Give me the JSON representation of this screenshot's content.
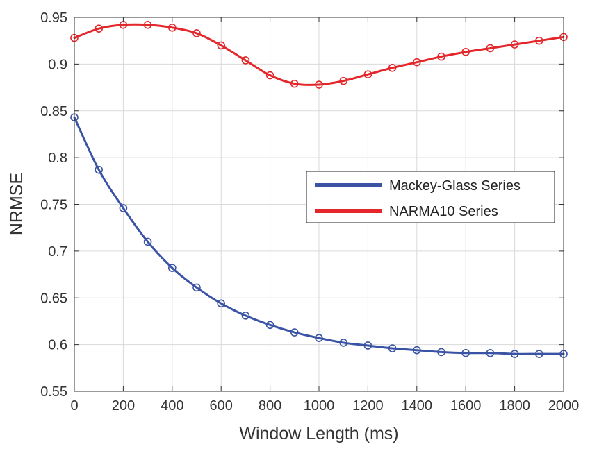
{
  "chart_data": {
    "type": "line",
    "xlabel": "Window Length (ms)",
    "ylabel": "NRMSE",
    "xlim": [
      0,
      2000
    ],
    "ylim": [
      0.55,
      0.95
    ],
    "x_ticks": [
      0,
      200,
      400,
      600,
      800,
      1000,
      1200,
      1400,
      1600,
      1800,
      2000
    ],
    "x_tick_labels": [
      "0",
      "200",
      "400",
      "600",
      "800",
      "1000",
      "1200",
      "1400",
      "1600",
      "1800",
      "2000"
    ],
    "y_ticks": [
      0.55,
      0.6,
      0.65,
      0.7,
      0.75,
      0.8,
      0.85,
      0.9,
      0.95
    ],
    "y_tick_labels": [
      "0.55",
      "0.6",
      "0.65",
      "0.7",
      "0.75",
      "0.8",
      "0.85",
      "0.9",
      "0.95"
    ],
    "grid": true,
    "legend_position": "right",
    "x": [
      0,
      100,
      200,
      300,
      400,
      500,
      600,
      700,
      800,
      900,
      1000,
      1100,
      1200,
      1300,
      1400,
      1500,
      1600,
      1700,
      1800,
      1900,
      2000
    ],
    "series": [
      {
        "name": "Mackey-Glass Series",
        "color": "#3a53a4",
        "marker": "circle",
        "values": [
          0.843,
          0.787,
          0.746,
          0.71,
          0.682,
          0.661,
          0.644,
          0.631,
          0.621,
          0.613,
          0.607,
          0.602,
          0.599,
          0.596,
          0.594,
          0.592,
          0.591,
          0.591,
          0.59,
          0.59,
          0.59
        ]
      },
      {
        "name": "NARMA10 Series",
        "color": "#e3272b",
        "marker": "circle",
        "values": [
          0.928,
          0.938,
          0.942,
          0.942,
          0.939,
          0.933,
          0.92,
          0.904,
          0.888,
          0.879,
          0.878,
          0.882,
          0.889,
          0.896,
          0.902,
          0.908,
          0.913,
          0.917,
          0.921,
          0.925,
          0.929
        ]
      }
    ]
  }
}
